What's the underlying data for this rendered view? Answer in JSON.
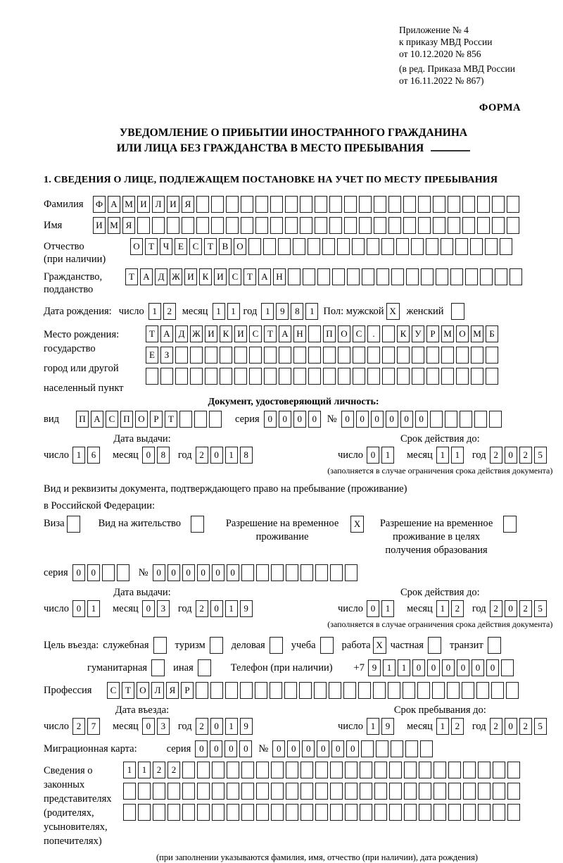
{
  "header": {
    "lines": [
      "Приложение № 4",
      "к приказу МВД России",
      "от 10.12.2020 № 856"
    ],
    "sub_lines": [
      "(в ред. Приказа МВД России",
      "от 16.11.2022 № 867)"
    ],
    "form_label": "ФОРМА"
  },
  "title": {
    "line1": "УВЕДОМЛЕНИЕ О ПРИБЫТИИ ИНОСТРАННОГО ГРАЖДАНИНА",
    "line2": "ИЛИ ЛИЦА БЕЗ ГРАЖДАНСТВА В МЕСТО ПРЕБЫВАНИЯ"
  },
  "section1_heading": "1. СВЕДЕНИЯ О ЛИЦЕ, ПОДЛЕЖАЩЕМ ПОСТАНОВКЕ НА УЧЕТ ПО МЕСТУ ПРЕБЫВАНИЯ",
  "misc": {
    "den": "число",
    "mes": "месяц",
    "god": "год",
    "seriya": "серия",
    "num": "№",
    "expiry_note": "(заполняется в случае ограничения срока действия документа)"
  },
  "surname": {
    "label": "Фамилия",
    "cells": {
      "value": "ФАМИЛИЯ",
      "count": 29
    }
  },
  "firstname": {
    "label": "Имя",
    "cells": {
      "value": "ИМЯ",
      "count": 29
    }
  },
  "patronymic": {
    "label1": "Отчество",
    "label2": "(при наличии)",
    "cells": {
      "value": "ОТЧЕСТВО",
      "count": 26
    }
  },
  "citizenship": {
    "label1": "Гражданство,",
    "label2": "подданство",
    "cells": {
      "value": "ТАДЖИКИСТАН",
      "count": 27
    }
  },
  "birthdate": {
    "label": "Дата рождения:",
    "d": {
      "value": "12",
      "count": 2
    },
    "m": {
      "value": "11",
      "count": 2
    },
    "y": {
      "value": "1981",
      "count": 4
    },
    "gender_label": "Пол: мужской",
    "male_mark": "X",
    "female_label": "женский",
    "female_mark": ""
  },
  "birthplace": {
    "labels": [
      "Место рождения:",
      "государство",
      "город или другой",
      "населенный пункт"
    ],
    "row1": {
      "value": "ТАДЖИКИСТАН ПОС. КУРМОМБ",
      "count": 24
    },
    "row2": {
      "value": "ЕЗ",
      "count": 24
    },
    "row3": {
      "value": "",
      "count": 24
    }
  },
  "iddoc": {
    "heading": "Документ, удостоверяющий личность:",
    "vid_label": "вид",
    "vid": {
      "value": "ПАСПОРТ",
      "count": 10
    },
    "seriya": {
      "value": "0000",
      "count": 4
    },
    "number": {
      "value": "000000",
      "count": 11
    }
  },
  "dates": {
    "doc_issue": {
      "title": "Дата выдачи:",
      "d": {
        "value": "16",
        "count": 2
      },
      "m": {
        "value": "08",
        "count": 2
      },
      "y": {
        "value": "2018",
        "count": 4
      }
    },
    "doc_expiry": {
      "title": "Срок действия до:",
      "d": {
        "value": "01",
        "count": 2
      },
      "m": {
        "value": "11",
        "count": 2
      },
      "y": {
        "value": "2025",
        "count": 4
      }
    },
    "permit_issue": {
      "title": "Дата выдачи:",
      "d": {
        "value": "01",
        "count": 2
      },
      "m": {
        "value": "03",
        "count": 2
      },
      "y": {
        "value": "2019",
        "count": 4
      }
    },
    "permit_expiry": {
      "title": "Срок действия до:",
      "d": {
        "value": "01",
        "count": 2
      },
      "m": {
        "value": "12",
        "count": 2
      },
      "y": {
        "value": "2025",
        "count": 4
      }
    },
    "entry": {
      "title": "Дата въезда:",
      "d": {
        "value": "27",
        "count": 2
      },
      "m": {
        "value": "03",
        "count": 2
      },
      "y": {
        "value": "2019",
        "count": 4
      }
    },
    "stay": {
      "title": "Срок пребывания до:",
      "d": {
        "value": "19",
        "count": 2
      },
      "m": {
        "value": "12",
        "count": 2
      },
      "y": {
        "value": "2025",
        "count": 4
      }
    }
  },
  "permit": {
    "line1": "Вид и реквизиты документа, подтверждающего право на пребывание (проживание)",
    "line2": "в Российской Федерации:",
    "options": [
      {
        "label": "Виза",
        "mark": ""
      },
      {
        "label": "Вид на жительство",
        "mark": ""
      },
      {
        "label": "Разрешение на временное проживание",
        "mark": "X"
      },
      {
        "label": "Разрешение на временное проживание в целях получения образования",
        "mark": ""
      }
    ],
    "seriya": {
      "value": "00",
      "count": 4
    },
    "number": {
      "value": "000000",
      "count": 14
    }
  },
  "purpose": {
    "label": "Цель въезда:",
    "options": [
      {
        "label": "служебная",
        "mark": ""
      },
      {
        "label": "туризм",
        "mark": ""
      },
      {
        "label": "деловая",
        "mark": ""
      },
      {
        "label": "учеба",
        "mark": ""
      },
      {
        "label": "работа",
        "mark": "X"
      },
      {
        "label": "частная",
        "mark": ""
      },
      {
        "label": "транзит",
        "mark": ""
      }
    ],
    "options2": [
      {
        "label": "гуманитарная",
        "mark": ""
      },
      {
        "label": "иная",
        "mark": ""
      }
    ],
    "phone_label": "Телефон (при наличии)",
    "phone_prefix": "+7",
    "phone": {
      "value": "911000000",
      "count": 10
    }
  },
  "profession": {
    "label": "Профессия",
    "cells": {
      "value": "СТОЛЯР",
      "count": 28
    }
  },
  "migration_card": {
    "label": "Миграционная карта:",
    "seriya": {
      "value": "0000",
      "count": 4
    },
    "number": {
      "value": "000000",
      "count": 11
    }
  },
  "legal_reps": {
    "labels": [
      "Сведения о",
      "законных",
      "представителях",
      "(родителях,",
      "усыновителях,",
      "попечителях)"
    ],
    "row1": {
      "value": "1122",
      "count": 27
    },
    "row2": {
      "value": "",
      "count": 27
    },
    "row3": {
      "value": "",
      "count": 27
    },
    "caption": "(при заполнении указываются фамилия, имя, отчество (при наличии), дата рождения)"
  }
}
